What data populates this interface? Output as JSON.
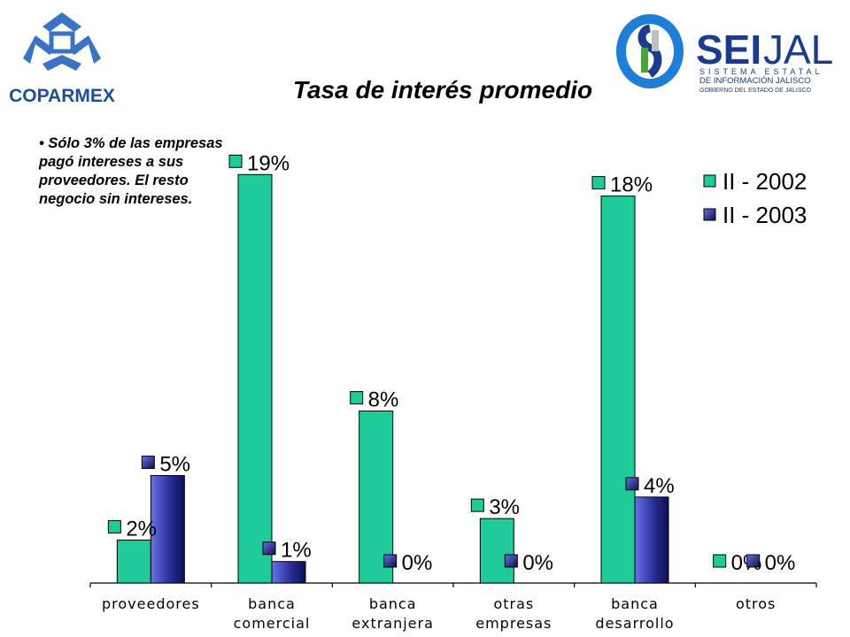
{
  "logos": {
    "left": {
      "text": "COPARMEX",
      "colors": [
        "#3a73c4",
        "#1f4e96"
      ]
    },
    "right": {
      "main_bold": "SEI",
      "main_light": "JAL",
      "line1": "SISTEMA ESTATAL",
      "line2": "DE INFORMACIÓN JALISCO",
      "line3": "GOBIERNO DEL ESTADO DE JALISCO",
      "colors": [
        "#1b3c8c",
        "#4aa23c",
        "#1f7ed8"
      ]
    }
  },
  "title": "Tasa de interés promedio",
  "note": "Sólo 3% de las empresas pagó intereses a sus proveedores. El resto negocio sin intereses.",
  "chart_data": {
    "type": "bar",
    "categories": [
      [
        "proveedores"
      ],
      [
        "banca",
        "comercial"
      ],
      [
        "banca",
        "extranjera"
      ],
      [
        "otras",
        "empresas"
      ],
      [
        "banca",
        "desarrollo"
      ],
      [
        "otros"
      ]
    ],
    "series": [
      {
        "name": "II - 2002",
        "values": [
          2,
          19,
          8,
          3,
          18,
          0
        ],
        "labels": [
          "2%",
          "19%",
          "8%",
          "3%",
          "18%",
          "0%"
        ],
        "color": "#1fcc99"
      },
      {
        "name": "II - 2003",
        "values": [
          5,
          1,
          0,
          0,
          4,
          0
        ],
        "labels": [
          "5%",
          "1%",
          "0%",
          "0%",
          "4%",
          "0%"
        ],
        "color": "#2a2f9c"
      }
    ],
    "ylim": [
      0,
      20
    ],
    "legend": "top-right",
    "grid": false
  }
}
